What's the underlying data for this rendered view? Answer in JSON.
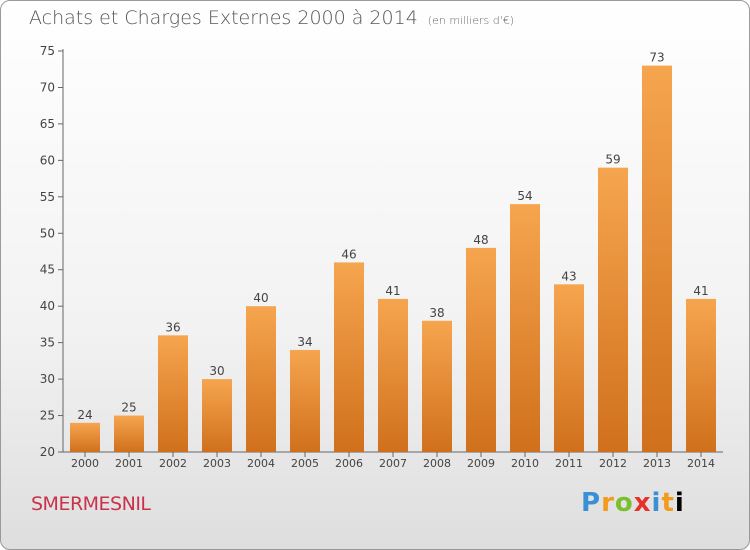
{
  "chart_title": "Achats et Charges Externes 2000 à 2014",
  "chart_subtitle": "(en milliers d'€)",
  "place_name": "SMERMESNIL",
  "logo_letters": [
    "P",
    "r",
    "o",
    "x",
    "i",
    "t",
    "i"
  ],
  "colors": {
    "bar_light": "#f6a54f",
    "bar_dark": "#d0701c",
    "place": "#c8324b"
  },
  "chart_data": {
    "type": "bar",
    "categories": [
      "2000",
      "2001",
      "2002",
      "2003",
      "2004",
      "2005",
      "2006",
      "2007",
      "2008",
      "2009",
      "2010",
      "2011",
      "2012",
      "2013",
      "2014"
    ],
    "values": [
      24,
      25,
      36,
      30,
      40,
      34,
      46,
      41,
      38,
      48,
      54,
      43,
      59,
      73,
      41
    ],
    "ylim": [
      20,
      75
    ],
    "yticks": [
      20,
      25,
      30,
      35,
      40,
      45,
      50,
      55,
      60,
      65,
      70,
      75
    ],
    "grid": false
  }
}
